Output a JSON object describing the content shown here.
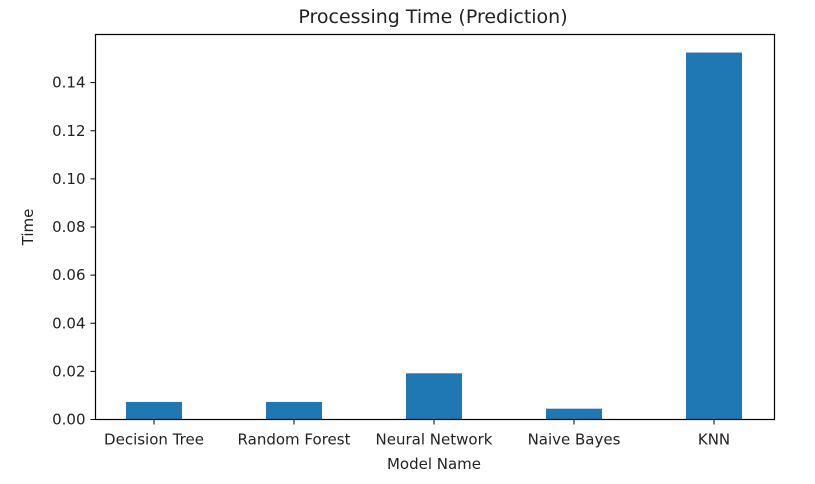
{
  "chart_data": {
    "type": "bar",
    "title": "Processing Time (Prediction)",
    "xlabel": "Model Name",
    "ylabel": "Time",
    "categories": [
      "Decision Tree",
      "Random Forest",
      "Neural Network",
      "Naive Bayes",
      "KNN"
    ],
    "values": [
      0.0073,
      0.0073,
      0.0192,
      0.0045,
      0.1525
    ],
    "ylim": [
      0,
      0.16
    ],
    "yticks": [
      0.0,
      0.02,
      0.04,
      0.06,
      0.08,
      0.1,
      0.12,
      0.14
    ],
    "ytick_labels": [
      "0.00",
      "0.02",
      "0.04",
      "0.06",
      "0.08",
      "0.10",
      "0.12",
      "0.14"
    ],
    "bar_color": "#1f77b4",
    "grid": false
  }
}
